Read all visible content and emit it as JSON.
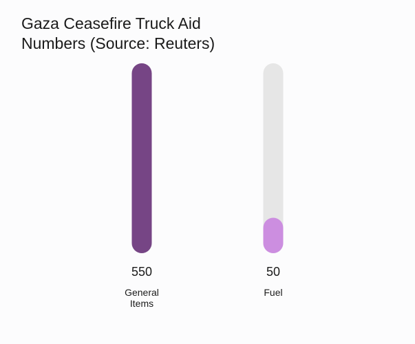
{
  "chart_data": {
    "type": "bar",
    "title": "Gaza Ceasefire Truck Aid Numbers (Source: Reuters)",
    "categories": [
      [
        "General",
        "Items"
      ],
      [
        "Fuel"
      ]
    ],
    "values": [
      550,
      50
    ],
    "value_labels": [
      "550",
      "50"
    ],
    "ylim": [
      0,
      550
    ],
    "grid": false,
    "colors": {
      "General Items": "#764585",
      "Fuel": "#cc8ee0",
      "track": "#e6e6e6"
    }
  }
}
